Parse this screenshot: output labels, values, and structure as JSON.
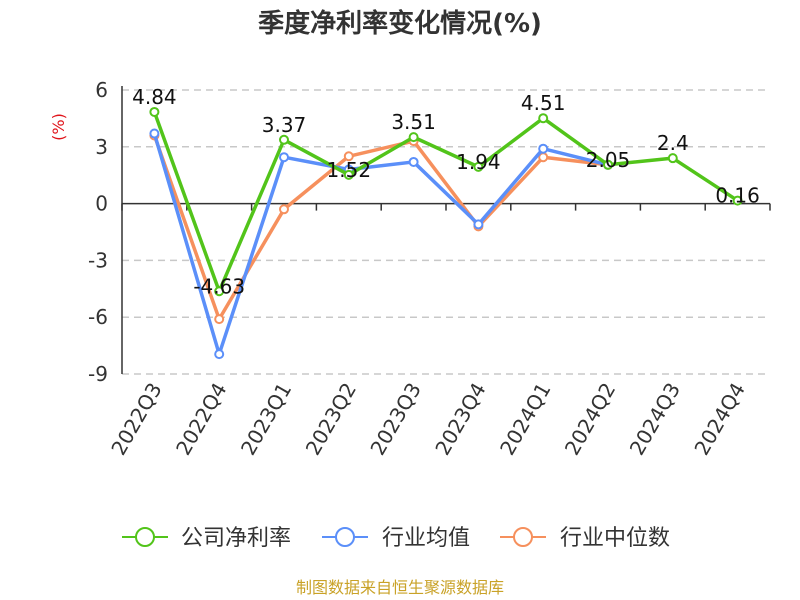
{
  "chart_data": {
    "type": "line",
    "title": "季度净利率变化情况(%)",
    "ylabel": "(%)",
    "ylim": [
      -9,
      6
    ],
    "yticks": [
      6,
      3,
      0,
      -3,
      -6,
      -9
    ],
    "grid": true,
    "legend_position": "bottom",
    "categories": [
      "2022Q3",
      "2022Q4",
      "2023Q1",
      "2023Q2",
      "2023Q3",
      "2023Q4",
      "2024Q1",
      "2024Q2",
      "2024Q3",
      "2024Q4"
    ],
    "series": [
      {
        "name": "公司净利率",
        "color": "#52c41a",
        "values": [
          4.84,
          -4.63,
          3.37,
          1.52,
          3.51,
          1.94,
          4.51,
          2.05,
          2.4,
          0.16
        ],
        "labels": [
          "4.84",
          "-4.63",
          "3.37",
          "1.52",
          "3.51",
          "1.94",
          "4.51",
          "2.05",
          "2.4",
          "0.16"
        ]
      },
      {
        "name": "行业均值",
        "color": "#5b8ff9",
        "values": [
          3.7,
          -7.95,
          2.45,
          1.8,
          2.2,
          -1.1,
          2.9,
          2.05,
          null,
          null
        ]
      },
      {
        "name": "行业中位数",
        "color": "#f6905d",
        "values": [
          3.6,
          -6.1,
          -0.3,
          2.5,
          3.3,
          -1.2,
          2.45,
          2.05,
          null,
          null
        ]
      }
    ]
  },
  "source": "制图数据来自恒生聚源数据库"
}
